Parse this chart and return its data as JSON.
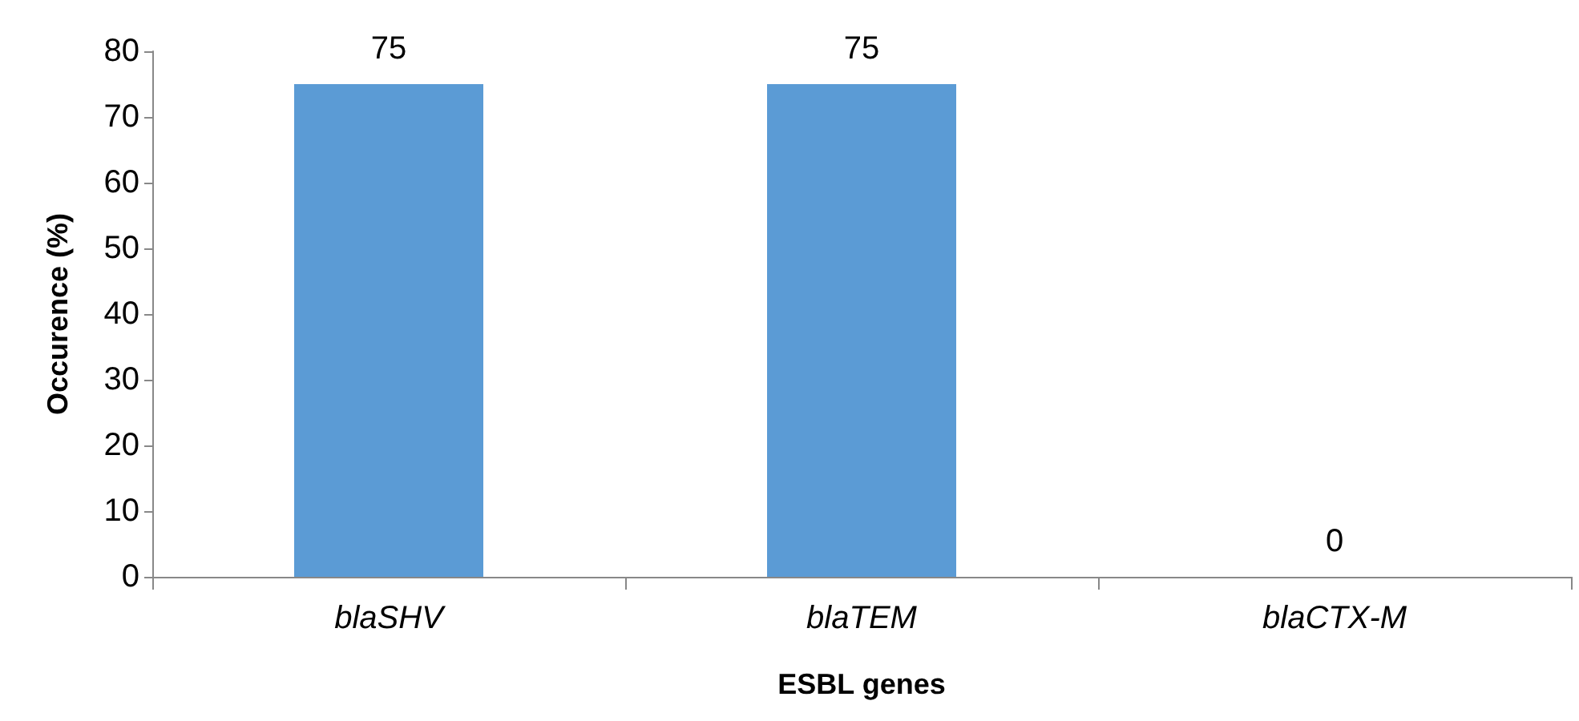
{
  "chart_data": {
    "type": "bar",
    "categories": [
      "blaSHV",
      "blaTEM",
      "blaCTX-M"
    ],
    "values": [
      75,
      75,
      0
    ],
    "color": "#5b9bd5",
    "xlabel": "ESBL genes",
    "ylabel": "Occurence (%)",
    "ylim": [
      0,
      80
    ],
    "yticks": [
      0,
      10,
      20,
      30,
      40,
      50,
      60,
      70,
      80
    ],
    "data_labels": true,
    "grid": false
  }
}
